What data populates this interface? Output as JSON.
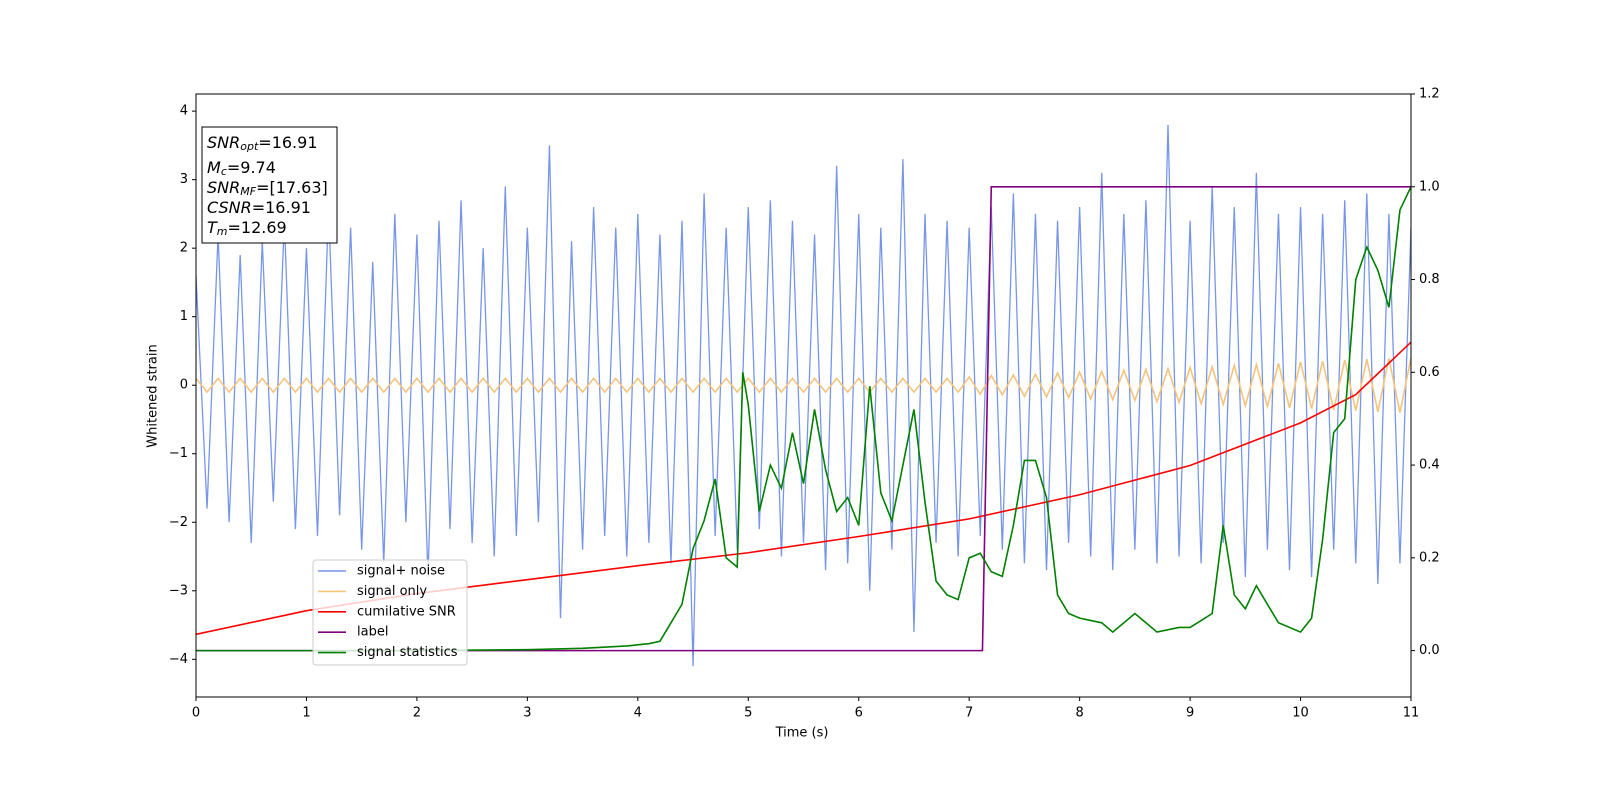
{
  "chart_data": {
    "type": "line",
    "xlabel": "Time (s)",
    "ylabel": "Whitened strain",
    "xlim": [
      0,
      11
    ],
    "xticks": [
      0,
      1,
      2,
      3,
      4,
      5,
      6,
      7,
      8,
      9,
      10,
      11
    ],
    "ylim": [
      -4.55,
      4.25
    ],
    "yticks": [
      {
        "value": -4,
        "label": "−4"
      },
      {
        "value": -3,
        "label": "−3"
      },
      {
        "value": -2,
        "label": "−2"
      },
      {
        "value": -1,
        "label": "−1"
      },
      0,
      1,
      2,
      3,
      4
    ],
    "y2lim": [
      -0.1,
      1.2
    ],
    "y2ticks": [
      {
        "value": 0,
        "label": "0.0"
      },
      0.2,
      0.4,
      0.6,
      0.8,
      {
        "value": 1,
        "label": "1.0"
      },
      1.2
    ],
    "legend": "lower left",
    "annotation": [
      {
        "symbol": "SNR",
        "subscript": "opt",
        "text": "=16.91"
      },
      {
        "symbol": "M",
        "subscript": "c",
        "text": "=9.74"
      },
      {
        "symbol": "SNR",
        "subscript": "MF",
        "text": "=[17.63]"
      },
      {
        "symbol": "CSNR",
        "text": "=16.91"
      },
      {
        "symbol": "T",
        "subscript": "m",
        "text": "=12.69"
      }
    ],
    "x": [
      0,
      0.1,
      0.2,
      0.3,
      0.4,
      0.5,
      0.6,
      0.7,
      0.8,
      0.9,
      1,
      1.1,
      1.2,
      1.3,
      1.4,
      1.5,
      1.6,
      1.7,
      1.8,
      1.9,
      2,
      2.1,
      2.2,
      2.3,
      2.4,
      2.5,
      2.6,
      2.7,
      2.8,
      2.9,
      3,
      3.1,
      3.2,
      3.3,
      3.4,
      3.5,
      3.6,
      3.7,
      3.8,
      3.9,
      4,
      4.1,
      4.2,
      4.3,
      4.4,
      4.5,
      4.6,
      4.7,
      4.8,
      4.9,
      5,
      5.1,
      5.2,
      5.3,
      5.4,
      5.5,
      5.6,
      5.7,
      5.8,
      5.9,
      6,
      6.1,
      6.2,
      6.3,
      6.4,
      6.5,
      6.6,
      6.7,
      6.8,
      6.9,
      7,
      7.1,
      7.2,
      7.3,
      7.4,
      7.5,
      7.6,
      7.7,
      7.8,
      7.9,
      8,
      8.1,
      8.2,
      8.3,
      8.4,
      8.5,
      8.6,
      8.7,
      8.8,
      8.9,
      9,
      9.1,
      9.2,
      9.3,
      9.4,
      9.5,
      9.6,
      9.7,
      9.8,
      9.9,
      10,
      10.1,
      10.2,
      10.3,
      10.4,
      10.5,
      10.6,
      10.7,
      10.8,
      10.9,
      11
    ],
    "series": [
      {
        "name": "signal+ noise",
        "color": "#7896e8",
        "values": [
          1.6,
          -1.8,
          2.2,
          -2.0,
          1.9,
          -2.3,
          2.1,
          -1.7,
          2.4,
          -2.1,
          2.0,
          -2.2,
          2.6,
          -1.9,
          2.3,
          -2.4,
          1.8,
          -2.6,
          2.5,
          -2.0,
          2.2,
          -2.8,
          2.4,
          -2.1,
          2.7,
          -2.3,
          2.0,
          -2.5,
          2.9,
          -2.2,
          2.3,
          -2.0,
          3.5,
          -3.4,
          2.1,
          -2.4,
          2.6,
          -2.2,
          2.3,
          -2.5,
          2.5,
          -2.3,
          2.2,
          -2.6,
          2.4,
          -4.1,
          2.8,
          -2.2,
          2.3,
          -2.4,
          2.6,
          -2.1,
          2.7,
          -2.5,
          2.4,
          -2.3,
          2.2,
          -2.7,
          3.2,
          -2.6,
          2.5,
          -3.0,
          2.3,
          -2.4,
          3.3,
          -3.6,
          2.5,
          -2.3,
          2.4,
          -2.5,
          2.3,
          -2.2,
          2.6,
          -2.4,
          2.8,
          -2.6,
          2.5,
          -2.7,
          2.4,
          -2.3,
          2.6,
          -2.5,
          3.1,
          -2.7,
          2.5,
          -2.4,
          2.7,
          -2.6,
          3.8,
          -2.5,
          2.4,
          -2.6,
          2.9,
          -2.3,
          2.6,
          -2.8,
          3.1,
          -2.4,
          2.5,
          -2.7,
          2.6,
          -2.8,
          2.5,
          -2.4,
          2.7,
          -2.6,
          2.8,
          -2.9,
          2.5,
          -2.6,
          2.3
        ]
      },
      {
        "name": "signal only",
        "color": "#f5c47c",
        "values": [
          0.1,
          -0.1,
          0.1,
          -0.1,
          0.1,
          -0.1,
          0.1,
          -0.1,
          0.1,
          -0.1,
          0.1,
          -0.1,
          0.1,
          -0.1,
          0.1,
          -0.1,
          0.1,
          -0.1,
          0.1,
          -0.1,
          0.1,
          -0.1,
          0.1,
          -0.1,
          0.1,
          -0.1,
          0.1,
          -0.1,
          0.1,
          -0.1,
          0.1,
          -0.1,
          0.1,
          -0.1,
          0.1,
          -0.1,
          0.1,
          -0.1,
          0.1,
          -0.1,
          0.1,
          -0.1,
          0.1,
          -0.1,
          0.1,
          -0.1,
          0.1,
          -0.1,
          0.1,
          -0.1,
          0.1,
          -0.1,
          0.1,
          -0.1,
          0.1,
          -0.1,
          0.1,
          -0.1,
          0.1,
          -0.1,
          0.1,
          -0.1,
          0.1,
          -0.1,
          0.1,
          -0.1,
          0.1,
          -0.1,
          0.1,
          -0.1,
          0.12,
          -0.13,
          0.14,
          -0.14,
          0.15,
          -0.16,
          0.16,
          -0.17,
          0.18,
          -0.18,
          0.19,
          -0.2,
          0.2,
          -0.21,
          0.22,
          -0.22,
          0.23,
          -0.24,
          0.24,
          -0.25,
          0.26,
          -0.27,
          0.27,
          -0.28,
          0.29,
          -0.3,
          0.3,
          -0.31,
          0.32,
          -0.33,
          0.34,
          -0.34,
          0.35,
          -0.36,
          0.37,
          -0.37,
          0.38,
          -0.39,
          0.39,
          -0.4,
          0.4
        ]
      },
      {
        "name": "cumilative SNR",
        "color": "#ff0000",
        "axis": "y2",
        "x": [
          0,
          1,
          2,
          3,
          4,
          5,
          6,
          7,
          8,
          9,
          10,
          10.5,
          11
        ],
        "values": [
          0.035,
          0.086,
          0.123,
          0.153,
          0.183,
          0.211,
          0.246,
          0.284,
          0.336,
          0.399,
          0.491,
          0.552,
          0.665
        ]
      },
      {
        "name": "label",
        "color": "#800080",
        "axis": "y2",
        "x": [
          0,
          7.12,
          7.2,
          11
        ],
        "values": [
          0,
          0,
          1,
          1
        ]
      },
      {
        "name": "signal statistics",
        "color": "#008000",
        "axis": "y2",
        "x": [
          0,
          1,
          2,
          3,
          3.5,
          3.9,
          4.1,
          4.2,
          4.25,
          4.3,
          4.4,
          4.5,
          4.6,
          4.7,
          4.8,
          4.9,
          4.95,
          5.0,
          5.1,
          5.2,
          5.3,
          5.4,
          5.5,
          5.6,
          5.7,
          5.8,
          5.9,
          6.0,
          6.1,
          6.2,
          6.3,
          6.4,
          6.5,
          6.6,
          6.7,
          6.8,
          6.9,
          7.0,
          7.1,
          7.2,
          7.3,
          7.4,
          7.5,
          7.6,
          7.7,
          7.8,
          7.9,
          8.0,
          8.2,
          8.3,
          8.5,
          8.6,
          8.7,
          8.9,
          9.0,
          9.2,
          9.3,
          9.4,
          9.5,
          9.6,
          9.8,
          10.0,
          10.1,
          10.2,
          10.3,
          10.4,
          10.5,
          10.6,
          10.7,
          10.8,
          10.9,
          11.0
        ],
        "values": [
          0,
          0,
          0,
          0.002,
          0.005,
          0.01,
          0.015,
          0.02,
          0.04,
          0.06,
          0.1,
          0.22,
          0.28,
          0.37,
          0.2,
          0.18,
          0.6,
          0.53,
          0.3,
          0.4,
          0.35,
          0.47,
          0.36,
          0.52,
          0.39,
          0.3,
          0.33,
          0.27,
          0.57,
          0.34,
          0.28,
          0.4,
          0.52,
          0.32,
          0.15,
          0.12,
          0.11,
          0.2,
          0.21,
          0.17,
          0.16,
          0.27,
          0.41,
          0.41,
          0.33,
          0.12,
          0.08,
          0.07,
          0.06,
          0.04,
          0.08,
          0.06,
          0.04,
          0.05,
          0.05,
          0.08,
          0.27,
          0.12,
          0.09,
          0.14,
          0.06,
          0.04,
          0.07,
          0.24,
          0.47,
          0.5,
          0.8,
          0.87,
          0.82,
          0.74,
          0.95,
          1.0
        ]
      }
    ]
  }
}
